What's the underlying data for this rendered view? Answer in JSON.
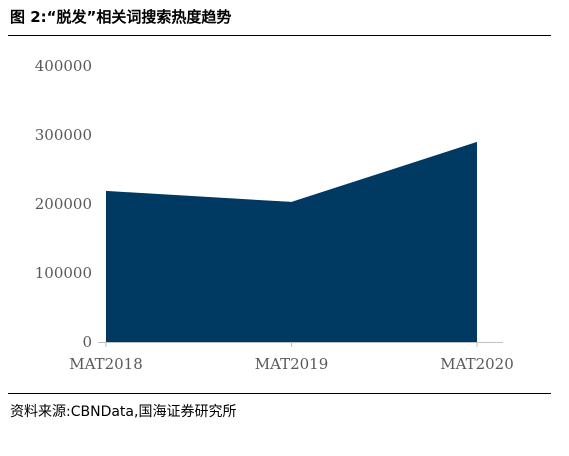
{
  "title": "图 2:“脱发”相关词搜索热度趋势",
  "source": "资料来源:CBNData,国海证券研究所",
  "colors": {
    "area": "#003A63",
    "axis": "#BFBFBF",
    "tick_text": "#595959"
  },
  "chart_data": {
    "type": "area",
    "categories": [
      "MAT2018",
      "MAT2019",
      "MAT2020"
    ],
    "series": [
      {
        "values": [
          219000,
          203000,
          290000
        ]
      }
    ],
    "title": "",
    "xlabel": "",
    "ylabel": "",
    "ylim": [
      0,
      400000
    ],
    "yticks": [
      "0",
      "100000",
      "200000",
      "300000",
      "400000"
    ],
    "grid": false,
    "legend": "none"
  }
}
